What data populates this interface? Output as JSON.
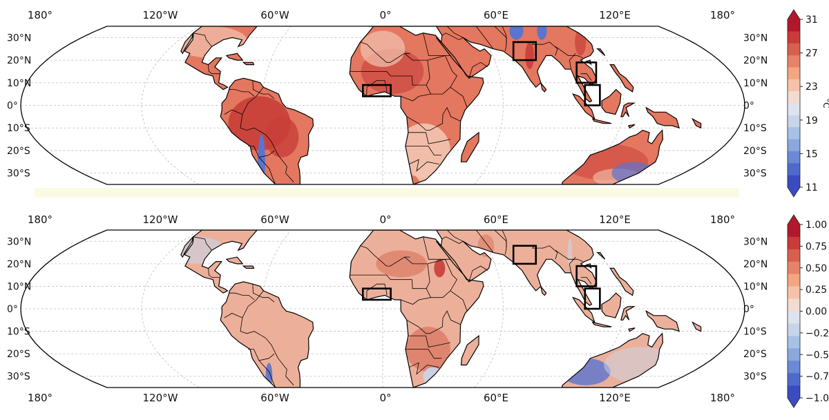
{
  "panels": [
    {
      "id": "top",
      "top_labels": [
        "180°",
        "120°W",
        "60°W",
        "0°",
        "60°E",
        "120°E",
        "180°"
      ],
      "bottom_labels": [],
      "lat_labels": [
        "30°N",
        "20°N",
        "10°N",
        "0°",
        "10°S",
        "20°S",
        "30°S"
      ],
      "colorbar": {
        "ticks": [
          "31",
          "27",
          "23",
          "19",
          "15",
          "11"
        ],
        "unit": "°C",
        "colors": [
          "#b2182b",
          "#c93a3a",
          "#d6604d",
          "#e58368",
          "#f4a582",
          "#f7c3a8",
          "#f2dcd0",
          "#dde4ee",
          "#c6d5ea",
          "#a7c1e6",
          "#8aa8dd",
          "#6a8ad6",
          "#4e6bcb",
          "#3b4cc0"
        ]
      }
    },
    {
      "id": "bottom",
      "top_labels": [
        "180°",
        "120°W",
        "60°W",
        "0°",
        "60°E",
        "120°E",
        "180°"
      ],
      "bottom_labels": [
        "180°",
        "120°W",
        "60°W",
        "0°",
        "60°E",
        "120°E",
        "180°"
      ],
      "lat_labels": [
        "30°N",
        "20°N",
        "10°N",
        "0°",
        "10°S",
        "20°S",
        "30°S"
      ],
      "colorbar": {
        "ticks": [
          "1.00",
          "0.75",
          "0.50",
          "0.25",
          "0.00",
          "−0.2",
          "−0.5",
          "−0.7",
          "−1.0"
        ],
        "unit": "",
        "colors": [
          "#b2182b",
          "#c93a3a",
          "#d6604d",
          "#e58368",
          "#f4a582",
          "#f7c3a8",
          "#f2dcd0",
          "#dde4ee",
          "#c6d5ea",
          "#a7c1e6",
          "#8aa8dd",
          "#6a8ad6",
          "#4e6bcb",
          "#3b4cc0"
        ]
      }
    }
  ],
  "map_colors": {
    "ocean": "#ffffff",
    "land_top": "#e4775f",
    "land_top_hot": "#c83e38",
    "land_top_cool": "#f2c4b0",
    "land_top_cold": "#5b74cf",
    "land_bottom": "#ecb09a",
    "land_bottom_warm": "#dc7a64",
    "land_bottom_cool": "#c9d6ea",
    "border": "#000000",
    "grid": "#bbbbbb"
  }
}
